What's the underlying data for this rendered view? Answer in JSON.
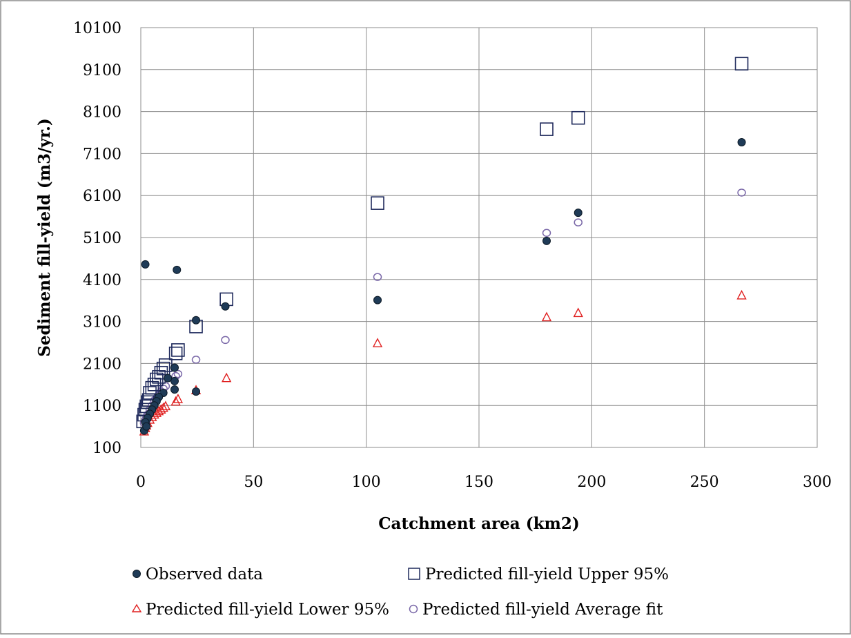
{
  "chart_data": {
    "type": "scatter",
    "title": "",
    "xlabel": "Catchment area (km2)",
    "ylabel": "Sediment fill-yield  (m3/yr.)",
    "xlim": [
      0,
      300
    ],
    "ylim": [
      100,
      10100
    ],
    "x_ticks": [
      0,
      50,
      100,
      150,
      200,
      250,
      300
    ],
    "y_ticks": [
      100,
      1100,
      2100,
      3100,
      4100,
      5100,
      6100,
      7100,
      8100,
      9100,
      10100
    ],
    "x_tick_labels": [
      "0",
      "50",
      "100",
      "150",
      "200",
      "250",
      "300"
    ],
    "y_tick_labels": [
      "100",
      "1100",
      "2100",
      "3100",
      "4100",
      "5100",
      "6100",
      "7100",
      "8100",
      "9100",
      "10100"
    ],
    "grid": true,
    "legend_position": "bottom",
    "series": [
      {
        "name": "Observed data",
        "marker": "filled-circle",
        "color": "#1f3b57",
        "points": [
          [
            2,
            4460
          ],
          [
            16,
            4330
          ],
          [
            24.5,
            3130
          ],
          [
            37.5,
            3460
          ],
          [
            105,
            3610
          ],
          [
            180,
            5020
          ],
          [
            194,
            5690
          ],
          [
            266.5,
            7370
          ],
          [
            24.5,
            1430
          ],
          [
            15,
            1480
          ],
          [
            15,
            1680
          ],
          [
            15,
            2000
          ],
          [
            12,
            1750
          ],
          [
            10,
            1400
          ],
          [
            8,
            1300
          ],
          [
            7,
            1200
          ],
          [
            6,
            1100
          ],
          [
            5,
            1000
          ],
          [
            4,
            900
          ],
          [
            3,
            800
          ],
          [
            2,
            700
          ],
          [
            1.5,
            500
          ],
          [
            2.5,
            600
          ]
        ]
      },
      {
        "name": "Predicted fill-yield Upper 95%",
        "marker": "square",
        "color": "#1f2a5c",
        "points": [
          [
            266.5,
            9240
          ],
          [
            194,
            7950
          ],
          [
            180,
            7680
          ],
          [
            105,
            5920
          ],
          [
            38,
            3630
          ],
          [
            24.5,
            2980
          ],
          [
            16.5,
            2420
          ],
          [
            15.5,
            2340
          ],
          [
            11,
            2060
          ],
          [
            10,
            1980
          ],
          [
            9,
            1880
          ],
          [
            8,
            1780
          ],
          [
            7,
            1720
          ],
          [
            6,
            1600
          ],
          [
            5,
            1520
          ],
          [
            4,
            1400
          ],
          [
            3.5,
            1230
          ],
          [
            3,
            1180
          ],
          [
            2.5,
            1080
          ],
          [
            2,
            1000
          ],
          [
            1.5,
            880
          ],
          [
            1,
            720
          ]
        ]
      },
      {
        "name": "Predicted fill-yield Lower 95%",
        "marker": "triangle",
        "color": "#e02020",
        "points": [
          [
            266.5,
            3720
          ],
          [
            194,
            3300
          ],
          [
            180,
            3200
          ],
          [
            105,
            2580
          ],
          [
            38,
            1750
          ],
          [
            24.5,
            1460
          ],
          [
            16.5,
            1250
          ],
          [
            15.5,
            1190
          ],
          [
            11,
            1080
          ],
          [
            10,
            1040
          ],
          [
            9,
            1000
          ],
          [
            8,
            960
          ],
          [
            7,
            920
          ],
          [
            6,
            880
          ],
          [
            5,
            820
          ],
          [
            4,
            760
          ],
          [
            3,
            680
          ],
          [
            2.5,
            620
          ],
          [
            2,
            560
          ],
          [
            1.5,
            480
          ]
        ]
      },
      {
        "name": "Predicted fill-yield Average fit",
        "marker": "open-circle",
        "color": "#7a68a8",
        "points": [
          [
            266.5,
            6170
          ],
          [
            194,
            5460
          ],
          [
            180,
            5210
          ],
          [
            105,
            4160
          ],
          [
            37.5,
            2660
          ],
          [
            24.5,
            2190
          ],
          [
            16.5,
            1850
          ],
          [
            15.5,
            1800
          ],
          [
            11,
            1560
          ],
          [
            10,
            1500
          ],
          [
            9,
            1430
          ],
          [
            8,
            1350
          ],
          [
            7,
            1280
          ],
          [
            6,
            1220
          ],
          [
            5,
            1100
          ],
          [
            4,
            1000
          ],
          [
            3.5,
            900
          ],
          [
            3,
            880
          ],
          [
            2.5,
            800
          ],
          [
            2,
            750
          ],
          [
            1.5,
            680
          ]
        ]
      }
    ]
  }
}
